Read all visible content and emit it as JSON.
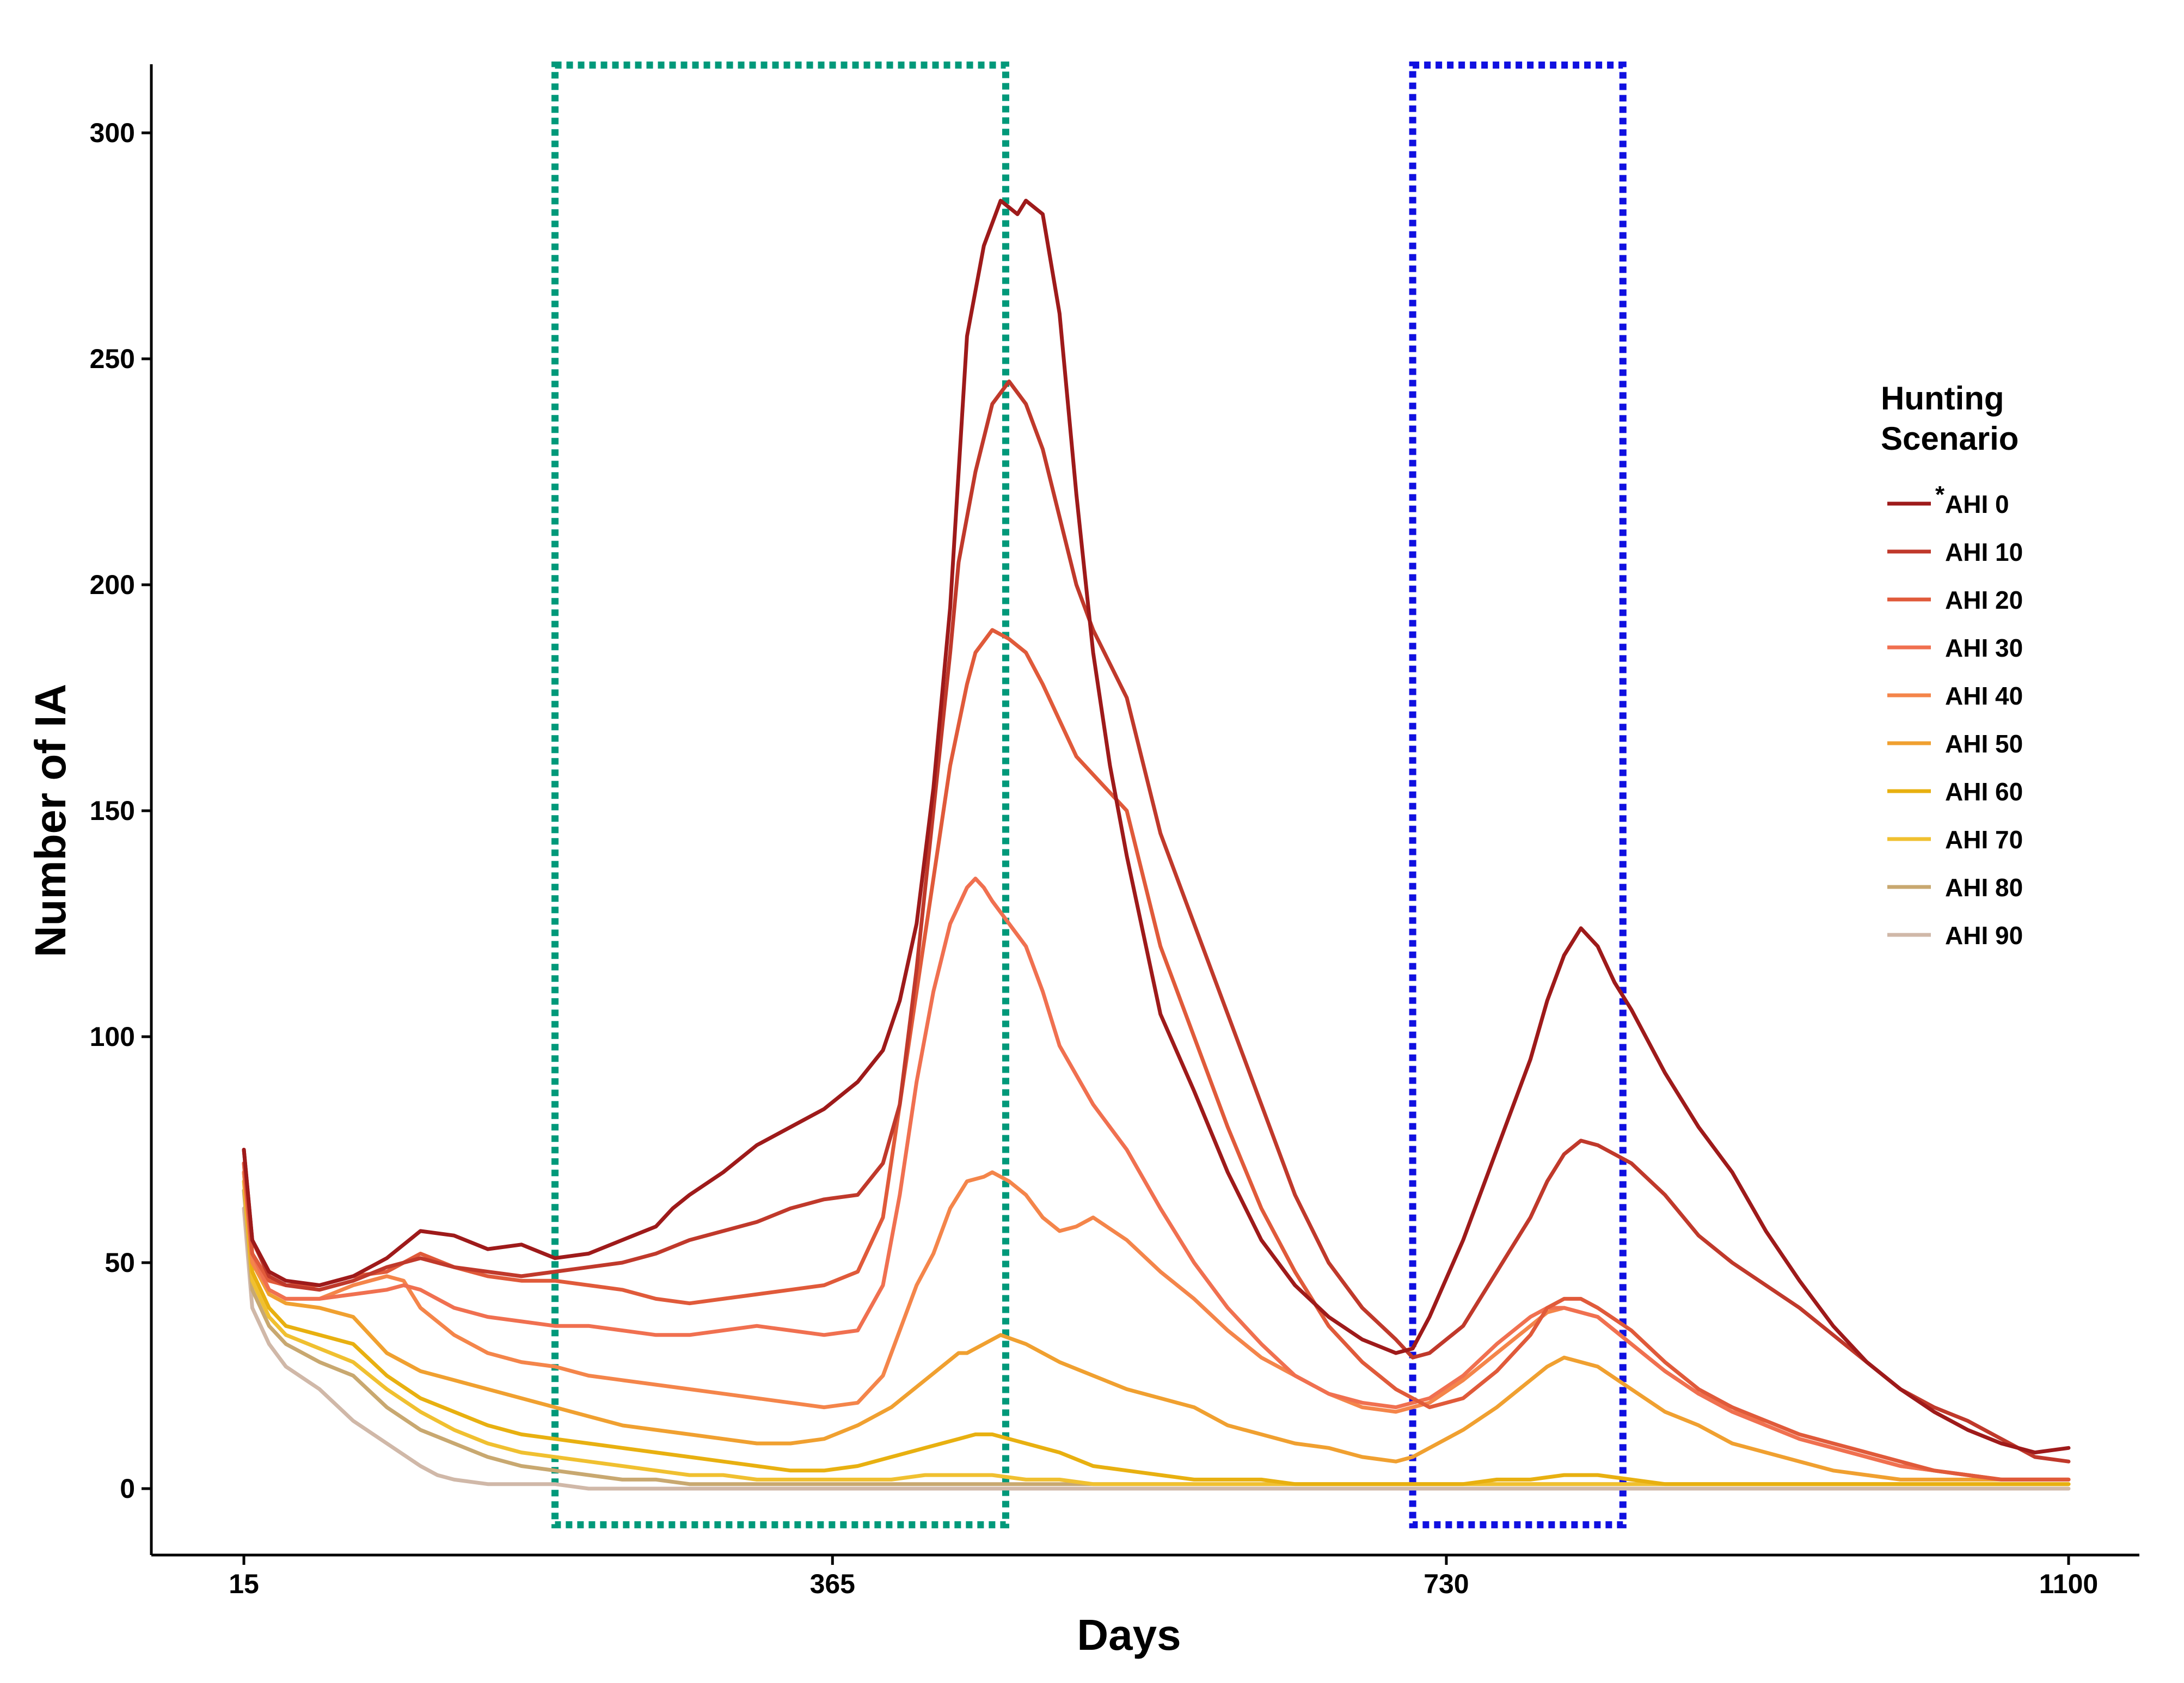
{
  "chart_data": {
    "type": "line",
    "title": "",
    "xlabel": "Days",
    "ylabel": "Number of IA",
    "xlim": [
      15,
      1100
    ],
    "ylim": [
      0,
      300
    ],
    "x_ticks": [
      15,
      365,
      730,
      1100
    ],
    "y_ticks": [
      0,
      50,
      100,
      150,
      200,
      250,
      300
    ],
    "legend": {
      "title_lines": [
        "Hunting",
        "Scenario"
      ],
      "baseline_marker": "*",
      "position": "right"
    },
    "annotations": [
      {
        "type": "dotted-rectangle",
        "color": "#00997a",
        "x_range": [
          200,
          468
        ],
        "y_range": [
          -8,
          315
        ]
      },
      {
        "type": "dotted-rectangle",
        "color": "#1010e0",
        "x_range": [
          710,
          835
        ],
        "y_range": [
          -8,
          315
        ]
      }
    ],
    "series": [
      {
        "name": "AHI 0",
        "color": "#9e1a1a",
        "x": [
          15,
          20,
          30,
          40,
          60,
          80,
          100,
          110,
          120,
          140,
          160,
          180,
          200,
          220,
          240,
          260,
          270,
          280,
          300,
          320,
          340,
          360,
          380,
          395,
          405,
          415,
          425,
          435,
          440,
          445,
          455,
          465,
          475,
          480,
          490,
          500,
          510,
          520,
          530,
          540,
          560,
          580,
          600,
          620,
          640,
          660,
          680,
          700,
          710,
          720,
          740,
          760,
          780,
          790,
          800,
          810,
          820,
          830,
          840,
          860,
          880,
          900,
          920,
          940,
          960,
          980,
          1000,
          1020,
          1040,
          1060,
          1080,
          1100
        ],
        "values": [
          75,
          55,
          48,
          46,
          45,
          47,
          51,
          54,
          57,
          56,
          53,
          54,
          51,
          52,
          55,
          58,
          62,
          65,
          70,
          76,
          80,
          84,
          90,
          97,
          108,
          125,
          155,
          195,
          225,
          255,
          275,
          285,
          282,
          285,
          282,
          260,
          220,
          185,
          160,
          140,
          105,
          88,
          70,
          55,
          45,
          38,
          33,
          30,
          31,
          38,
          55,
          75,
          95,
          108,
          118,
          124,
          120,
          112,
          106,
          92,
          80,
          70,
          57,
          46,
          36,
          28,
          22,
          17,
          13,
          10,
          8,
          9
        ]
      },
      {
        "name": "AHI 10",
        "color": "#c0392b",
        "x": [
          15,
          20,
          30,
          40,
          60,
          80,
          100,
          110,
          120,
          140,
          160,
          180,
          200,
          220,
          240,
          260,
          280,
          300,
          320,
          340,
          360,
          380,
          395,
          405,
          415,
          425,
          435,
          440,
          450,
          460,
          470,
          480,
          490,
          500,
          510,
          520,
          540,
          560,
          580,
          600,
          620,
          640,
          660,
          680,
          700,
          710,
          720,
          740,
          760,
          780,
          790,
          800,
          810,
          820,
          830,
          840,
          860,
          880,
          900,
          920,
          940,
          960,
          980,
          1000,
          1020,
          1040,
          1060,
          1080,
          1100
        ],
        "values": [
          75,
          55,
          47,
          45,
          44,
          46,
          49,
          50,
          51,
          49,
          48,
          47,
          48,
          49,
          50,
          52,
          55,
          57,
          59,
          62,
          64,
          65,
          72,
          85,
          115,
          150,
          185,
          205,
          225,
          240,
          245,
          240,
          230,
          215,
          200,
          190,
          175,
          145,
          125,
          105,
          85,
          65,
          50,
          40,
          33,
          29,
          30,
          36,
          48,
          60,
          68,
          74,
          77,
          76,
          74,
          72,
          65,
          56,
          50,
          45,
          40,
          34,
          28,
          22,
          18,
          15,
          11,
          7,
          6
        ]
      },
      {
        "name": "AHI 20",
        "color": "#e05a3a",
        "x": [
          15,
          20,
          30,
          40,
          60,
          80,
          100,
          110,
          120,
          140,
          160,
          180,
          200,
          220,
          240,
          260,
          280,
          300,
          320,
          340,
          360,
          380,
          395,
          405,
          415,
          425,
          435,
          445,
          450,
          460,
          470,
          480,
          490,
          500,
          510,
          520,
          540,
          560,
          580,
          600,
          620,
          640,
          660,
          680,
          700,
          720,
          740,
          760,
          780,
          790,
          800,
          810,
          820,
          840,
          860,
          880,
          900,
          920,
          940,
          960,
          980,
          1000,
          1020,
          1040,
          1060,
          1080,
          1100
        ],
        "values": [
          72,
          52,
          46,
          45,
          45,
          47,
          48,
          50,
          52,
          49,
          47,
          46,
          46,
          45,
          44,
          42,
          41,
          42,
          43,
          44,
          45,
          48,
          60,
          85,
          110,
          135,
          160,
          178,
          185,
          190,
          188,
          185,
          178,
          170,
          162,
          158,
          150,
          120,
          100,
          80,
          62,
          48,
          36,
          28,
          22,
          18,
          20,
          26,
          34,
          40,
          42,
          42,
          40,
          35,
          28,
          22,
          18,
          15,
          12,
          10,
          8,
          6,
          4,
          3,
          2,
          2,
          2
        ]
      },
      {
        "name": "AHI 30",
        "color": "#f07050",
        "x": [
          15,
          20,
          30,
          40,
          60,
          80,
          100,
          110,
          120,
          140,
          160,
          180,
          200,
          220,
          240,
          260,
          280,
          300,
          320,
          340,
          360,
          380,
          395,
          405,
          415,
          425,
          435,
          445,
          450,
          455,
          460,
          470,
          480,
          490,
          500,
          520,
          540,
          560,
          580,
          600,
          620,
          640,
          660,
          680,
          700,
          720,
          740,
          760,
          780,
          790,
          800,
          820,
          840,
          860,
          880,
          900,
          920,
          940,
          960,
          980,
          1000,
          1020,
          1040,
          1060,
          1080,
          1100
        ],
        "values": [
          72,
          52,
          44,
          42,
          42,
          43,
          44,
          45,
          44,
          40,
          38,
          37,
          36,
          36,
          35,
          34,
          34,
          35,
          36,
          35,
          34,
          35,
          45,
          65,
          90,
          110,
          125,
          133,
          135,
          133,
          130,
          125,
          120,
          110,
          98,
          85,
          75,
          62,
          50,
          40,
          32,
          25,
          21,
          19,
          18,
          20,
          25,
          32,
          38,
          40,
          40,
          38,
          32,
          26,
          21,
          17,
          14,
          11,
          9,
          7,
          5,
          4,
          3,
          2,
          2,
          2
        ]
      },
      {
        "name": "AHI 40",
        "color": "#f4854a",
        "x": [
          15,
          20,
          30,
          40,
          60,
          80,
          100,
          110,
          120,
          140,
          160,
          180,
          200,
          220,
          240,
          260,
          280,
          300,
          320,
          340,
          360,
          380,
          395,
          405,
          415,
          425,
          435,
          445,
          455,
          460,
          470,
          480,
          490,
          500,
          510,
          520,
          540,
          560,
          580,
          600,
          620,
          640,
          660,
          680,
          700,
          720,
          740,
          760,
          780,
          790,
          800,
          820,
          840,
          860,
          880,
          900,
          920,
          940,
          960,
          980,
          1000,
          1020,
          1040,
          1060,
          1080,
          1100
        ],
        "values": [
          70,
          50,
          44,
          42,
          42,
          45,
          47,
          46,
          40,
          34,
          30,
          28,
          27,
          25,
          24,
          23,
          22,
          21,
          20,
          19,
          18,
          19,
          25,
          35,
          45,
          52,
          62,
          68,
          69,
          70,
          68,
          65,
          60,
          57,
          58,
          60,
          55,
          48,
          42,
          35,
          29,
          25,
          21,
          18,
          17,
          19,
          24,
          30,
          36,
          39,
          40,
          38,
          32,
          26,
          21,
          18,
          14,
          11,
          9,
          7,
          5,
          4,
          3,
          2,
          2,
          2
        ]
      },
      {
        "name": "AHI 50",
        "color": "#f0a030",
        "x": [
          15,
          20,
          30,
          40,
          60,
          80,
          100,
          120,
          140,
          160,
          180,
          200,
          220,
          240,
          260,
          280,
          300,
          320,
          340,
          360,
          380,
          400,
          420,
          440,
          445,
          455,
          465,
          480,
          500,
          520,
          540,
          560,
          580,
          600,
          620,
          640,
          660,
          680,
          700,
          710,
          720,
          740,
          760,
          780,
          790,
          800,
          820,
          840,
          860,
          880,
          900,
          920,
          940,
          960,
          980,
          1000,
          1020,
          1040,
          1060,
          1080,
          1100
        ],
        "values": [
          70,
          50,
          43,
          41,
          40,
          38,
          30,
          26,
          24,
          22,
          20,
          18,
          16,
          14,
          13,
          12,
          11,
          10,
          10,
          11,
          14,
          18,
          24,
          30,
          30,
          32,
          34,
          32,
          28,
          25,
          22,
          20,
          18,
          14,
          12,
          10,
          9,
          7,
          6,
          7,
          9,
          13,
          18,
          24,
          27,
          29,
          27,
          22,
          17,
          14,
          10,
          8,
          6,
          4,
          3,
          2,
          2,
          2,
          2,
          2,
          2
        ]
      },
      {
        "name": "AHI 60",
        "color": "#e8b010",
        "x": [
          15,
          20,
          30,
          40,
          60,
          80,
          100,
          120,
          140,
          160,
          180,
          200,
          220,
          240,
          260,
          280,
          300,
          320,
          340,
          360,
          380,
          400,
          420,
          440,
          450,
          460,
          480,
          500,
          520,
          540,
          560,
          580,
          600,
          620,
          640,
          660,
          680,
          700,
          720,
          740,
          760,
          780,
          800,
          820,
          840,
          860,
          880,
          900,
          950,
          1000,
          1050,
          1100
        ],
        "values": [
          70,
          48,
          40,
          36,
          34,
          32,
          25,
          20,
          17,
          14,
          12,
          11,
          10,
          9,
          8,
          7,
          6,
          5,
          4,
          4,
          5,
          7,
          9,
          11,
          12,
          12,
          10,
          8,
          5,
          4,
          3,
          2,
          2,
          2,
          1,
          1,
          1,
          1,
          1,
          1,
          2,
          2,
          3,
          3,
          2,
          1,
          1,
          1,
          1,
          1,
          1,
          1
        ]
      },
      {
        "name": "AHI 70",
        "color": "#f0c030",
        "x": [
          15,
          20,
          30,
          40,
          60,
          80,
          100,
          120,
          140,
          160,
          180,
          200,
          220,
          240,
          260,
          280,
          300,
          320,
          340,
          360,
          380,
          400,
          420,
          440,
          450,
          460,
          480,
          500,
          520,
          540,
          560,
          600,
          650,
          700,
          750,
          800,
          850,
          900,
          950,
          1000,
          1050,
          1100
        ],
        "values": [
          68,
          46,
          38,
          34,
          31,
          28,
          22,
          17,
          13,
          10,
          8,
          7,
          6,
          5,
          4,
          3,
          3,
          2,
          2,
          2,
          2,
          2,
          3,
          3,
          3,
          3,
          2,
          2,
          1,
          1,
          1,
          1,
          1,
          1,
          1,
          1,
          1,
          1,
          1,
          1,
          1,
          1
        ]
      },
      {
        "name": "AHI 80",
        "color": "#c8a870",
        "x": [
          15,
          20,
          30,
          40,
          60,
          80,
          100,
          120,
          140,
          160,
          180,
          200,
          220,
          240,
          260,
          280,
          300,
          320,
          340,
          360,
          400,
          450,
          500,
          600,
          700,
          800,
          900,
          1000,
          1100
        ],
        "values": [
          66,
          44,
          36,
          32,
          28,
          25,
          18,
          13,
          10,
          7,
          5,
          4,
          3,
          2,
          2,
          1,
          1,
          1,
          1,
          1,
          1,
          1,
          1,
          1,
          1,
          1,
          1,
          1,
          1
        ]
      },
      {
        "name": "AHI 90",
        "color": "#d0b8a8",
        "x": [
          15,
          20,
          30,
          40,
          60,
          80,
          100,
          120,
          130,
          140,
          160,
          180,
          200,
          220,
          240,
          260,
          280,
          300,
          320,
          340,
          400,
          500,
          600,
          700,
          800,
          900,
          1000,
          1100
        ],
        "values": [
          62,
          40,
          32,
          27,
          22,
          15,
          10,
          5,
          3,
          2,
          1,
          1,
          1,
          0,
          0,
          0,
          0,
          0,
          0,
          0,
          0,
          0,
          0,
          0,
          0,
          0,
          0,
          0
        ]
      }
    ]
  }
}
